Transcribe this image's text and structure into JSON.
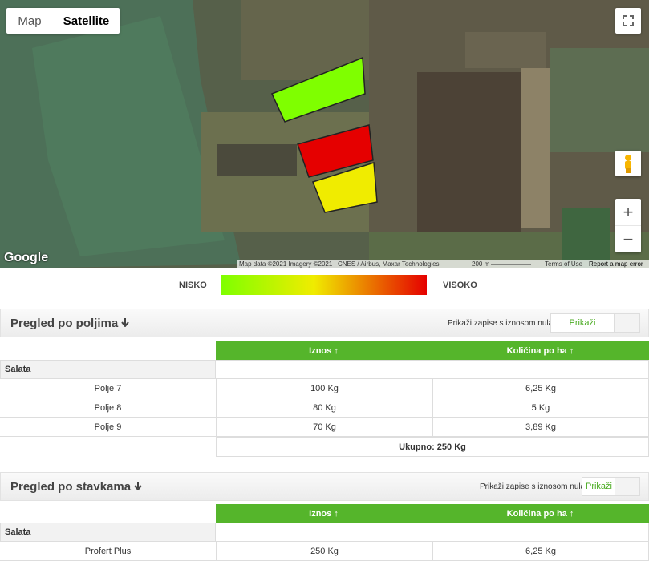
{
  "map": {
    "type_map": "Map",
    "type_satellite": "Satellite",
    "logo": "Google",
    "attribution": "Map data ©2021 Imagery ©2021 , CNES / Airbus, Maxar Technologies",
    "scale": "200 m",
    "terms": "Terms of Use",
    "report": "Report a map error",
    "zoom_in": "+",
    "zoom_out": "−"
  },
  "legend": {
    "low": "NISKO",
    "high": "VISOKO"
  },
  "sections": [
    {
      "title": "Pregled po poljima",
      "toggle_label": "Prikaži zapise s iznosom nula",
      "toggle_button": "Prikaži",
      "columns": [
        "Iznos ↑",
        "Količina po ha ↑"
      ],
      "group": "Salata",
      "rows": [
        [
          "Polje 7",
          "100 Kg",
          "6,25 Kg"
        ],
        [
          "Polje 8",
          "80 Kg",
          "5 Kg"
        ],
        [
          "Polje 9",
          "70 Kg",
          "3,89 Kg"
        ]
      ],
      "total": "Ukupno: 250 Kg"
    },
    {
      "title": "Pregled po stavkama",
      "toggle_label": "Prikaži zapise s iznosom nula",
      "toggle_button": "Prikaži",
      "columns": [
        "Iznos ↑",
        "Količina po ha ↑"
      ],
      "group": "Salata",
      "rows": [
        [
          "Profert Plus",
          "250 Kg",
          "6,25 Kg"
        ]
      ]
    }
  ]
}
